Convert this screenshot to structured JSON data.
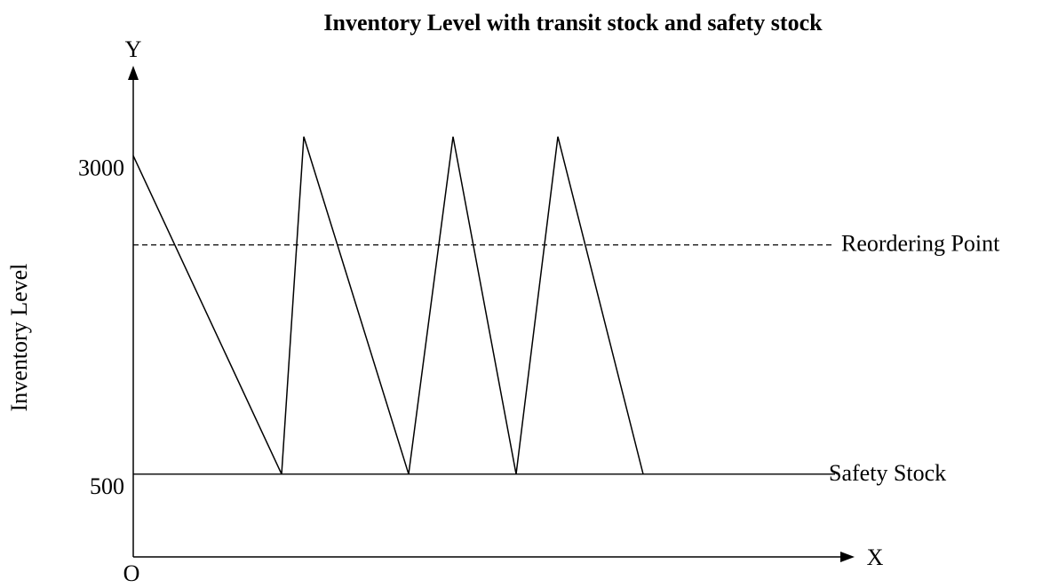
{
  "chart_data": {
    "type": "line",
    "title": "Inventory Level with transit stock and safety stock",
    "y_label": "Inventory Level",
    "y_axis_name": "Y",
    "x_axis_name": "X",
    "origin_label": "O",
    "x": [
      0,
      167,
      192,
      310,
      360,
      431,
      478,
      574
    ],
    "series": [
      {
        "color": "#000000",
        "values": [
          3000,
          500,
          3150,
          500,
          3150,
          500,
          3150,
          500
        ]
      }
    ],
    "xlim": [
      0,
      810
    ],
    "ylim": [
      -150,
      3700
    ],
    "yticks": [
      500,
      3000
    ],
    "reference_lines": [
      {
        "name": "Reordering Point",
        "value": 2300,
        "style": "dashed"
      },
      {
        "name": "Safety Stock",
        "value": 500,
        "style": "solid"
      }
    ]
  }
}
